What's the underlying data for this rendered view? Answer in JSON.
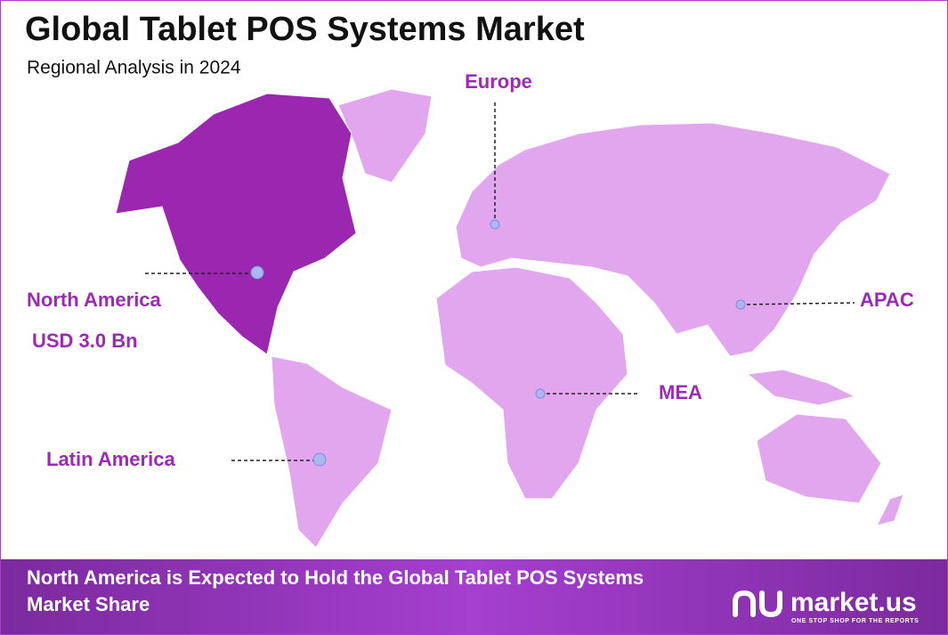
{
  "header": {
    "title": "Global Tablet POS Systems Market",
    "subtitle": "Regional Analysis in 2024"
  },
  "regions": [
    {
      "label": "Europe"
    },
    {
      "label": "North America",
      "value": "USD 3.0 Bn"
    },
    {
      "label": "APAC"
    },
    {
      "label": "MEA"
    },
    {
      "label": "Latin America"
    }
  ],
  "footer": {
    "text_line1": "North America is Expected to Hold the Global Tablet POS Systems",
    "text_line2": "Market Share",
    "brand": "market.us",
    "tagline": "ONE STOP SHOP FOR THE REPORTS"
  }
}
